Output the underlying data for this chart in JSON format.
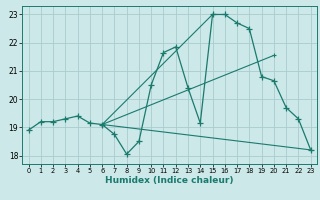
{
  "xlabel": "Humidex (Indice chaleur)",
  "xlim": [
    -0.5,
    23.5
  ],
  "ylim": [
    17.7,
    23.3
  ],
  "yticks": [
    18,
    19,
    20,
    21,
    22,
    23
  ],
  "xticks": [
    0,
    1,
    2,
    3,
    4,
    5,
    6,
    7,
    8,
    9,
    10,
    11,
    12,
    13,
    14,
    15,
    16,
    17,
    18,
    19,
    20,
    21,
    22,
    23
  ],
  "bg_color": "#cce8e8",
  "grid_color": "#aacccc",
  "line_color": "#1a7a6e",
  "main_curve": {
    "x": [
      0,
      1,
      2,
      3,
      4,
      5,
      6,
      7,
      8,
      9,
      10,
      11,
      12,
      13,
      14,
      15,
      16,
      17,
      18,
      19,
      20,
      21,
      22,
      23
    ],
    "y": [
      18.9,
      19.2,
      19.2,
      19.3,
      19.4,
      19.15,
      19.1,
      18.75,
      18.05,
      18.5,
      20.5,
      21.65,
      21.85,
      20.4,
      19.15,
      23.0,
      23.0,
      22.7,
      22.5,
      20.8,
      20.65,
      19.7,
      19.3,
      18.2
    ]
  },
  "straight_lines": [
    {
      "x": [
        6,
        23
      ],
      "y": [
        19.1,
        18.2
      ]
    },
    {
      "x": [
        6,
        20
      ],
      "y": [
        19.1,
        21.55
      ]
    },
    {
      "x": [
        6,
        15
      ],
      "y": [
        19.1,
        23.0
      ]
    }
  ]
}
